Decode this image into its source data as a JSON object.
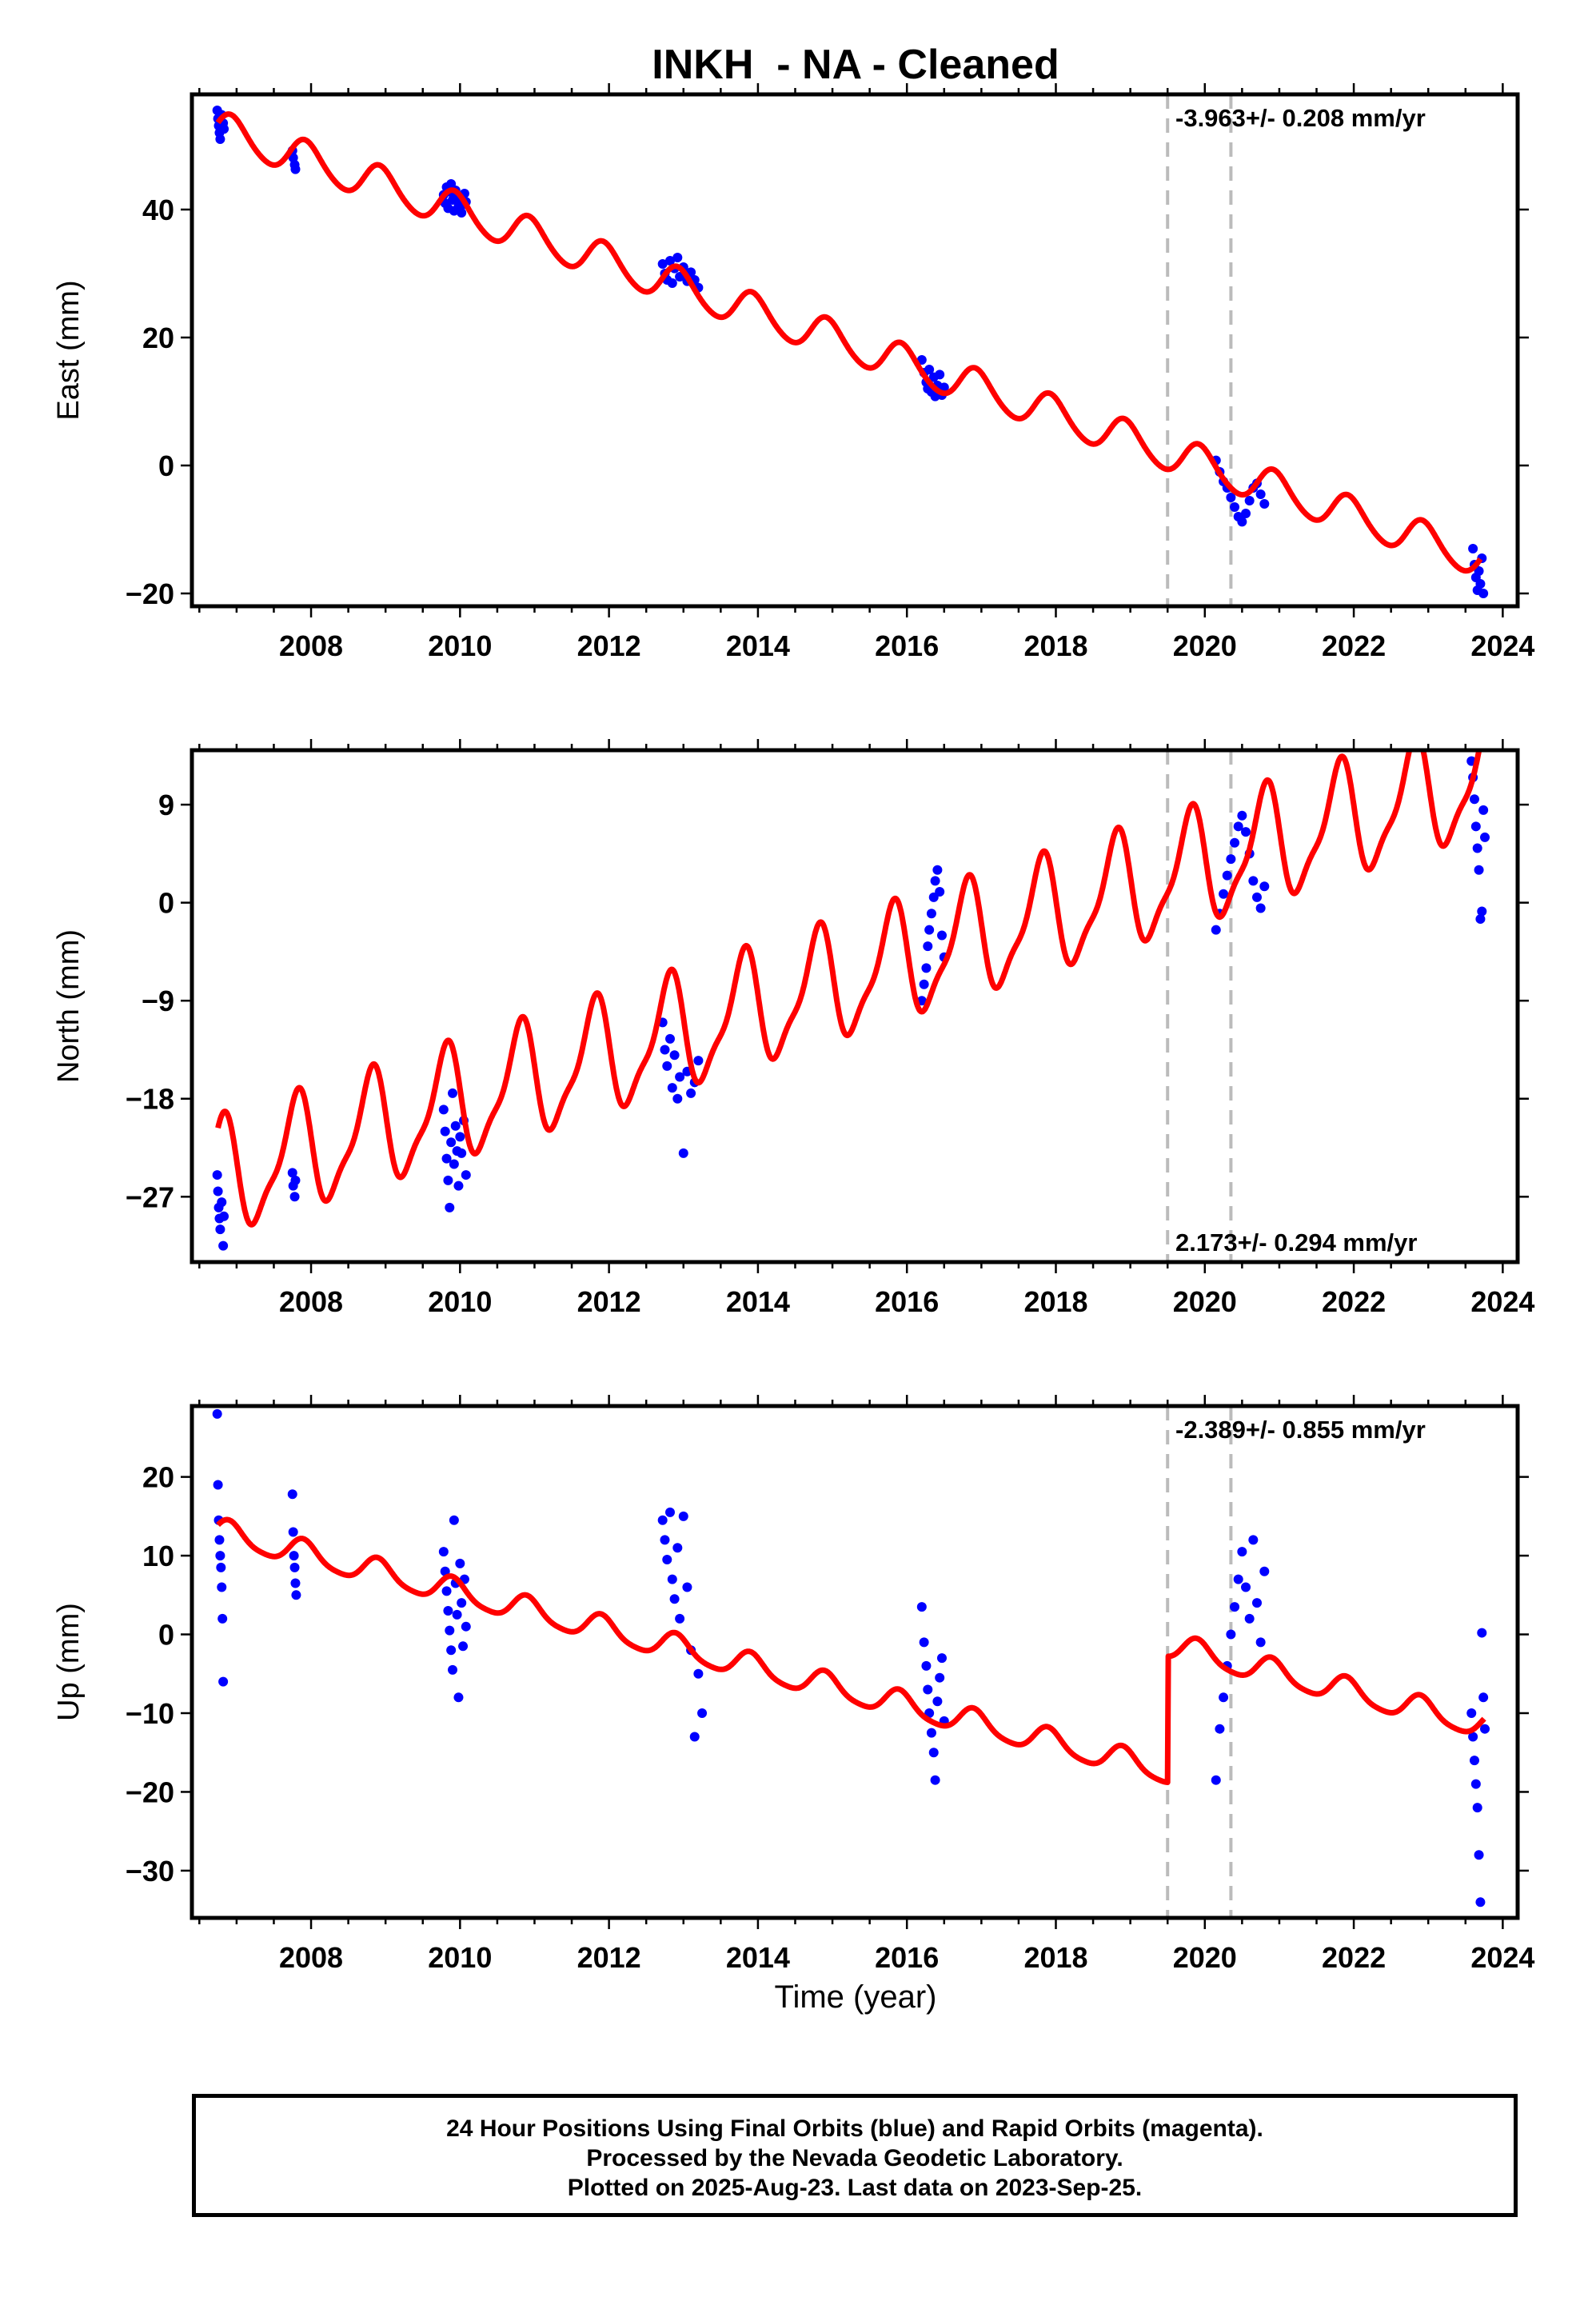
{
  "chart_data": {
    "type": "scatter",
    "title": "INKH  - NA - Cleaned",
    "xlabel": "Time (year)",
    "xlim": [
      2006.4,
      2024.2
    ],
    "xticks": [
      2008,
      2010,
      2012,
      2014,
      2016,
      2018,
      2020,
      2022,
      2024
    ],
    "step_epochs": [
      2019.5,
      2020.35
    ],
    "colors": {
      "observations": "#0000ff",
      "model": "#ff0000",
      "steps": "#bbbbbb",
      "frame": "#000000"
    },
    "panels": [
      {
        "ylabel": "East (mm)",
        "ylim": [
          -22,
          58
        ],
        "yticks": [
          -20,
          0,
          20,
          40
        ],
        "rate_label": "-3.963+/- 0.208 mm/yr",
        "rate_position": "top-right",
        "model": {
          "start": 2006.75,
          "end": 2023.7,
          "velocity": -3.963,
          "offset_at_start": 52.5,
          "annual_amp": 2.8,
          "annual_phase": 0.4,
          "semiannual_amp": 0.3,
          "steps": [
            0,
            0
          ]
        },
        "observations": [
          {
            "t": 2006.74,
            "y": 55.5
          },
          {
            "t": 2006.75,
            "y": 54.2
          },
          {
            "t": 2006.76,
            "y": 53.1
          },
          {
            "t": 2006.77,
            "y": 52.0
          },
          {
            "t": 2006.78,
            "y": 51.0
          },
          {
            "t": 2006.8,
            "y": 54.8
          },
          {
            "t": 2006.82,
            "y": 53.5
          },
          {
            "t": 2006.83,
            "y": 52.6
          },
          {
            "t": 2007.75,
            "y": 49.2
          },
          {
            "t": 2007.76,
            "y": 48.1
          },
          {
            "t": 2007.78,
            "y": 47.0
          },
          {
            "t": 2007.79,
            "y": 46.3
          },
          {
            "t": 2009.78,
            "y": 42.3
          },
          {
            "t": 2009.8,
            "y": 41.0
          },
          {
            "t": 2009.82,
            "y": 43.5
          },
          {
            "t": 2009.84,
            "y": 40.2
          },
          {
            "t": 2009.86,
            "y": 42.8
          },
          {
            "t": 2009.88,
            "y": 44.0
          },
          {
            "t": 2009.9,
            "y": 41.5
          },
          {
            "t": 2009.92,
            "y": 39.8
          },
          {
            "t": 2009.94,
            "y": 43.0
          },
          {
            "t": 2009.96,
            "y": 42.0
          },
          {
            "t": 2009.98,
            "y": 40.5
          },
          {
            "t": 2010.0,
            "y": 41.8
          },
          {
            "t": 2010.02,
            "y": 39.5
          },
          {
            "t": 2010.04,
            "y": 40.8
          },
          {
            "t": 2010.06,
            "y": 42.5
          },
          {
            "t": 2010.08,
            "y": 41.2
          },
          {
            "t": 2012.72,
            "y": 31.5
          },
          {
            "t": 2012.75,
            "y": 30.0
          },
          {
            "t": 2012.78,
            "y": 29.0
          },
          {
            "t": 2012.82,
            "y": 32.0
          },
          {
            "t": 2012.85,
            "y": 28.5
          },
          {
            "t": 2012.88,
            "y": 30.8
          },
          {
            "t": 2012.92,
            "y": 32.5
          },
          {
            "t": 2012.95,
            "y": 29.5
          },
          {
            "t": 2013.0,
            "y": 31.0
          },
          {
            "t": 2013.05,
            "y": 28.8
          },
          {
            "t": 2013.1,
            "y": 30.2
          },
          {
            "t": 2013.15,
            "y": 29.0
          },
          {
            "t": 2013.2,
            "y": 27.8
          },
          {
            "t": 2016.2,
            "y": 16.5
          },
          {
            "t": 2016.23,
            "y": 14.5
          },
          {
            "t": 2016.26,
            "y": 13.0
          },
          {
            "t": 2016.28,
            "y": 12.0
          },
          {
            "t": 2016.3,
            "y": 15.0
          },
          {
            "t": 2016.33,
            "y": 11.5
          },
          {
            "t": 2016.36,
            "y": 13.8
          },
          {
            "t": 2016.38,
            "y": 10.8
          },
          {
            "t": 2016.41,
            "y": 12.5
          },
          {
            "t": 2016.44,
            "y": 14.2
          },
          {
            "t": 2016.47,
            "y": 11.0
          },
          {
            "t": 2016.5,
            "y": 12.2
          },
          {
            "t": 2020.15,
            "y": 0.8
          },
          {
            "t": 2020.2,
            "y": -1.0
          },
          {
            "t": 2020.25,
            "y": -2.5
          },
          {
            "t": 2020.3,
            "y": -3.5
          },
          {
            "t": 2020.35,
            "y": -5.0
          },
          {
            "t": 2020.4,
            "y": -6.5
          },
          {
            "t": 2020.45,
            "y": -8.0
          },
          {
            "t": 2020.5,
            "y": -8.8
          },
          {
            "t": 2020.55,
            "y": -7.5
          },
          {
            "t": 2020.6,
            "y": -5.5
          },
          {
            "t": 2020.65,
            "y": -3.5
          },
          {
            "t": 2020.7,
            "y": -2.8
          },
          {
            "t": 2020.75,
            "y": -4.5
          },
          {
            "t": 2020.8,
            "y": -6.0
          },
          {
            "t": 2023.6,
            "y": -13.0
          },
          {
            "t": 2023.62,
            "y": -15.5
          },
          {
            "t": 2023.64,
            "y": -17.5
          },
          {
            "t": 2023.66,
            "y": -19.5
          },
          {
            "t": 2023.68,
            "y": -16.5
          },
          {
            "t": 2023.7,
            "y": -18.5
          },
          {
            "t": 2023.72,
            "y": -14.5
          },
          {
            "t": 2023.74,
            "y": -20.0
          }
        ]
      },
      {
        "ylabel": "North (mm)",
        "ylim": [
          -33,
          14
        ],
        "yticks": [
          -27,
          -18,
          -9,
          0,
          9
        ],
        "rate_label": "2.173+/- 0.294 mm/yr",
        "rate_position": "bottom-right",
        "model": {
          "start": 2006.75,
          "end": 2023.75,
          "velocity": 2.173,
          "offset_at_start": -25.5,
          "annual_amp": 5.0,
          "annual_phase": 1.3,
          "semiannual_amp": 1.5,
          "steps": [
            0,
            0
          ]
        },
        "observations": [
          {
            "t": 2006.74,
            "y": -25.0
          },
          {
            "t": 2006.75,
            "y": -26.5
          },
          {
            "t": 2006.76,
            "y": -28.0
          },
          {
            "t": 2006.77,
            "y": -29.0
          },
          {
            "t": 2006.78,
            "y": -30.0
          },
          {
            "t": 2006.8,
            "y": -27.5
          },
          {
            "t": 2006.82,
            "y": -31.5
          },
          {
            "t": 2006.83,
            "y": -28.8
          },
          {
            "t": 2007.75,
            "y": -24.8
          },
          {
            "t": 2007.76,
            "y": -26.0
          },
          {
            "t": 2007.78,
            "y": -27.0
          },
          {
            "t": 2007.79,
            "y": -25.5
          },
          {
            "t": 2009.78,
            "y": -19.0
          },
          {
            "t": 2009.8,
            "y": -21.0
          },
          {
            "t": 2009.82,
            "y": -23.5
          },
          {
            "t": 2009.84,
            "y": -25.5
          },
          {
            "t": 2009.86,
            "y": -28.0
          },
          {
            "t": 2009.88,
            "y": -22.0
          },
          {
            "t": 2009.9,
            "y": -17.5
          },
          {
            "t": 2009.92,
            "y": -24.0
          },
          {
            "t": 2009.94,
            "y": -20.5
          },
          {
            "t": 2009.96,
            "y": -22.8
          },
          {
            "t": 2009.98,
            "y": -26.0
          },
          {
            "t": 2010.0,
            "y": -21.5
          },
          {
            "t": 2010.02,
            "y": -23.0
          },
          {
            "t": 2010.05,
            "y": -20.0
          },
          {
            "t": 2010.08,
            "y": -25.0
          },
          {
            "t": 2012.72,
            "y": -11.0
          },
          {
            "t": 2012.75,
            "y": -13.5
          },
          {
            "t": 2012.78,
            "y": -15.0
          },
          {
            "t": 2012.82,
            "y": -12.5
          },
          {
            "t": 2012.85,
            "y": -17.0
          },
          {
            "t": 2012.88,
            "y": -14.0
          },
          {
            "t": 2012.92,
            "y": -18.0
          },
          {
            "t": 2012.95,
            "y": -16.0
          },
          {
            "t": 2013.0,
            "y": -23.0
          },
          {
            "t": 2013.05,
            "y": -15.5
          },
          {
            "t": 2013.1,
            "y": -17.5
          },
          {
            "t": 2013.15,
            "y": -16.5
          },
          {
            "t": 2013.2,
            "y": -14.5
          },
          {
            "t": 2016.2,
            "y": -9.0
          },
          {
            "t": 2016.23,
            "y": -7.5
          },
          {
            "t": 2016.26,
            "y": -6.0
          },
          {
            "t": 2016.28,
            "y": -4.0
          },
          {
            "t": 2016.3,
            "y": -2.5
          },
          {
            "t": 2016.33,
            "y": -1.0
          },
          {
            "t": 2016.36,
            "y": 0.5
          },
          {
            "t": 2016.38,
            "y": 2.0
          },
          {
            "t": 2016.41,
            "y": 3.0
          },
          {
            "t": 2016.44,
            "y": 1.0
          },
          {
            "t": 2016.47,
            "y": -3.0
          },
          {
            "t": 2016.5,
            "y": -5.0
          },
          {
            "t": 2020.15,
            "y": -2.5
          },
          {
            "t": 2020.2,
            "y": -1.0
          },
          {
            "t": 2020.25,
            "y": 0.8
          },
          {
            "t": 2020.3,
            "y": 2.5
          },
          {
            "t": 2020.35,
            "y": 4.0
          },
          {
            "t": 2020.4,
            "y": 5.5
          },
          {
            "t": 2020.45,
            "y": 7.0
          },
          {
            "t": 2020.5,
            "y": 8.0
          },
          {
            "t": 2020.55,
            "y": 6.5
          },
          {
            "t": 2020.6,
            "y": 4.5
          },
          {
            "t": 2020.65,
            "y": 2.0
          },
          {
            "t": 2020.7,
            "y": 0.5
          },
          {
            "t": 2020.75,
            "y": -0.5
          },
          {
            "t": 2020.8,
            "y": 1.5
          },
          {
            "t": 2023.58,
            "y": 13.0
          },
          {
            "t": 2023.6,
            "y": 11.5
          },
          {
            "t": 2023.62,
            "y": 9.5
          },
          {
            "t": 2023.64,
            "y": 7.0
          },
          {
            "t": 2023.66,
            "y": 5.0
          },
          {
            "t": 2023.68,
            "y": 3.0
          },
          {
            "t": 2023.7,
            "y": -1.5
          },
          {
            "t": 2023.72,
            "y": -0.8
          },
          {
            "t": 2023.74,
            "y": 8.5
          },
          {
            "t": 2023.76,
            "y": 6.0
          }
        ]
      },
      {
        "ylabel": "Up (mm)",
        "ylim": [
          -36,
          29
        ],
        "yticks": [
          -30,
          -20,
          -10,
          0,
          10,
          20
        ],
        "rate_label": "-2.389+/- 0.855 mm/yr",
        "rate_position": "top-right",
        "model": {
          "start": 2006.75,
          "end": 2023.75,
          "velocity": -2.389,
          "offset_at_start": 13.0,
          "annual_amp": 1.6,
          "annual_phase": 0.6,
          "semiannual_amp": 0.3,
          "steps": [
            16.0,
            0
          ]
        },
        "observations": [
          {
            "t": 2006.74,
            "y": 28.0
          },
          {
            "t": 2006.75,
            "y": 19.0
          },
          {
            "t": 2006.76,
            "y": 14.5
          },
          {
            "t": 2006.77,
            "y": 12.0
          },
          {
            "t": 2006.78,
            "y": 10.0
          },
          {
            "t": 2006.79,
            "y": 8.5
          },
          {
            "t": 2006.8,
            "y": 6.0
          },
          {
            "t": 2006.81,
            "y": 2.0
          },
          {
            "t": 2006.82,
            "y": -6.0
          },
          {
            "t": 2007.75,
            "y": 17.8
          },
          {
            "t": 2007.76,
            "y": 13.0
          },
          {
            "t": 2007.77,
            "y": 10.0
          },
          {
            "t": 2007.78,
            "y": 8.5
          },
          {
            "t": 2007.79,
            "y": 6.5
          },
          {
            "t": 2007.8,
            "y": 5.0
          },
          {
            "t": 2009.78,
            "y": 10.5
          },
          {
            "t": 2009.8,
            "y": 8.0
          },
          {
            "t": 2009.82,
            "y": 5.5
          },
          {
            "t": 2009.84,
            "y": 3.0
          },
          {
            "t": 2009.86,
            "y": 0.5
          },
          {
            "t": 2009.88,
            "y": -2.0
          },
          {
            "t": 2009.9,
            "y": -4.5
          },
          {
            "t": 2009.92,
            "y": 14.5
          },
          {
            "t": 2009.94,
            "y": 6.5
          },
          {
            "t": 2009.96,
            "y": 2.5
          },
          {
            "t": 2009.98,
            "y": -8.0
          },
          {
            "t": 2010.0,
            "y": 9.0
          },
          {
            "t": 2010.02,
            "y": 4.0
          },
          {
            "t": 2010.04,
            "y": -1.5
          },
          {
            "t": 2010.06,
            "y": 7.0
          },
          {
            "t": 2010.08,
            "y": 1.0
          },
          {
            "t": 2012.72,
            "y": 14.5
          },
          {
            "t": 2012.75,
            "y": 12.0
          },
          {
            "t": 2012.78,
            "y": 9.5
          },
          {
            "t": 2012.82,
            "y": 15.5
          },
          {
            "t": 2012.85,
            "y": 7.0
          },
          {
            "t": 2012.88,
            "y": 4.5
          },
          {
            "t": 2012.92,
            "y": 11.0
          },
          {
            "t": 2012.95,
            "y": 2.0
          },
          {
            "t": 2013.0,
            "y": 15.0
          },
          {
            "t": 2013.05,
            "y": 6.0
          },
          {
            "t": 2013.1,
            "y": -2.0
          },
          {
            "t": 2013.15,
            "y": -13.0
          },
          {
            "t": 2013.2,
            "y": -5.0
          },
          {
            "t": 2013.25,
            "y": -10.0
          },
          {
            "t": 2016.2,
            "y": 3.5
          },
          {
            "t": 2016.23,
            "y": -1.0
          },
          {
            "t": 2016.26,
            "y": -4.0
          },
          {
            "t": 2016.28,
            "y": -7.0
          },
          {
            "t": 2016.3,
            "y": -10.0
          },
          {
            "t": 2016.33,
            "y": -12.5
          },
          {
            "t": 2016.36,
            "y": -15.0
          },
          {
            "t": 2016.38,
            "y": -18.5
          },
          {
            "t": 2016.41,
            "y": -8.5
          },
          {
            "t": 2016.44,
            "y": -5.5
          },
          {
            "t": 2016.47,
            "y": -3.0
          },
          {
            "t": 2016.5,
            "y": -11.0
          },
          {
            "t": 2020.15,
            "y": -18.5
          },
          {
            "t": 2020.2,
            "y": -12.0
          },
          {
            "t": 2020.25,
            "y": -8.0
          },
          {
            "t": 2020.3,
            "y": -4.0
          },
          {
            "t": 2020.35,
            "y": 0.0
          },
          {
            "t": 2020.4,
            "y": 3.5
          },
          {
            "t": 2020.45,
            "y": 7.0
          },
          {
            "t": 2020.5,
            "y": 10.5
          },
          {
            "t": 2020.55,
            "y": 6.0
          },
          {
            "t": 2020.6,
            "y": 2.0
          },
          {
            "t": 2020.65,
            "y": 12.0
          },
          {
            "t": 2020.7,
            "y": 4.0
          },
          {
            "t": 2020.75,
            "y": -1.0
          },
          {
            "t": 2020.8,
            "y": 8.0
          },
          {
            "t": 2023.58,
            "y": -10.0
          },
          {
            "t": 2023.6,
            "y": -13.0
          },
          {
            "t": 2023.62,
            "y": -16.0
          },
          {
            "t": 2023.64,
            "y": -19.0
          },
          {
            "t": 2023.66,
            "y": -22.0
          },
          {
            "t": 2023.68,
            "y": -28.0
          },
          {
            "t": 2023.7,
            "y": -34.0
          },
          {
            "t": 2023.72,
            "y": 0.2
          },
          {
            "t": 2023.74,
            "y": -8.0
          },
          {
            "t": 2023.76,
            "y": -12.0
          }
        ]
      }
    ]
  },
  "footer": {
    "line1": "24 Hour Positions Using Final Orbits (blue) and Rapid Orbits (magenta).",
    "line2": "Processed by the Nevada Geodetic Laboratory.",
    "line3": "Plotted on 2025-Aug-23. Last data on 2023-Sep-25."
  }
}
